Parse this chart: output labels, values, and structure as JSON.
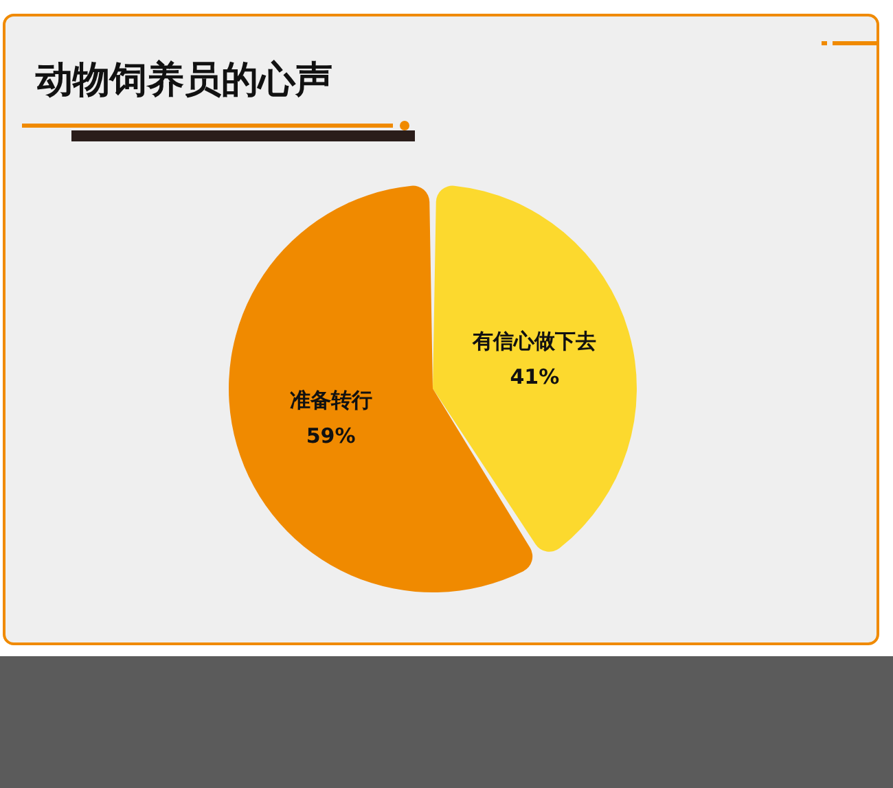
{
  "chart_data": {
    "type": "pie",
    "title": "动物饲养员的心声",
    "categories": [
      "有信心做下去",
      "准备转行"
    ],
    "values": [
      41,
      59
    ],
    "colors": [
      "#fcd92e",
      "#f08a00"
    ],
    "value_labels": [
      "41%",
      "59%"
    ]
  }
}
